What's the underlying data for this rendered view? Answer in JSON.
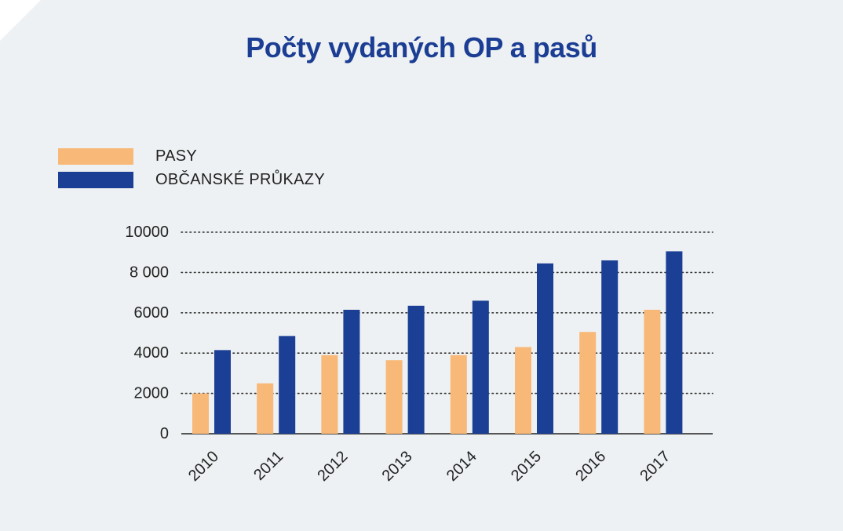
{
  "chart_data": {
    "type": "bar",
    "title": "Počty vydaných OP a pasů",
    "categories": [
      "2010",
      "2011",
      "2012",
      "2013",
      "2014",
      "2015",
      "2016",
      "2017"
    ],
    "series": [
      {
        "name": "PASY",
        "color": "#f8b878",
        "values": [
          2000,
          2500,
          3900,
          3650,
          3900,
          4300,
          5050,
          6150
        ]
      },
      {
        "name": "OBČANSKÉ PRŮKAZY",
        "color": "#1b3f95",
        "values": [
          4150,
          4850,
          6150,
          6350,
          6600,
          8450,
          8600,
          9050
        ]
      }
    ],
    "yticks": [
      "0",
      "2000",
      "4000",
      "6000",
      "8 000",
      "10000"
    ],
    "ylim": [
      0,
      10000
    ],
    "grid": "dotted horizontal",
    "legend": "top-left"
  },
  "colors": {
    "background": "#eef1f3",
    "title": "#1b3d94"
  }
}
